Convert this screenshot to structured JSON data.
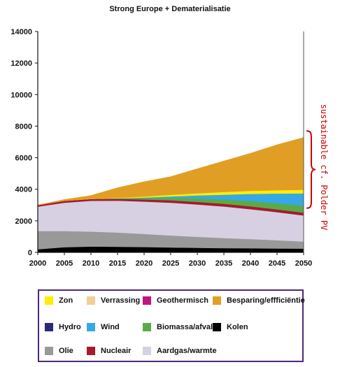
{
  "chart_data": {
    "type": "area",
    "title": "Strong Europe + Dematerialisatie",
    "x": [
      2000,
      2005,
      2010,
      2015,
      2020,
      2025,
      2030,
      2035,
      2040,
      2045,
      2050
    ],
    "xlim": [
      2000,
      2050
    ],
    "ylim": [
      0,
      14000
    ],
    "xticks": [
      "2000",
      "2005",
      "2010",
      "2015",
      "2020",
      "2025",
      "2030",
      "2035",
      "2040",
      "2045",
      "2050"
    ],
    "yticks": [
      "0",
      "2000",
      "4000",
      "6000",
      "8000",
      "10000",
      "12000",
      "14000"
    ],
    "grid": false,
    "series": [
      {
        "name": "Kolen",
        "color": "#000000",
        "values": [
          200,
          330,
          370,
          360,
          340,
          310,
          290,
          270,
          260,
          250,
          240
        ]
      },
      {
        "name": "Olie",
        "color": "#999999",
        "values": [
          1150,
          1020,
          950,
          900,
          830,
          760,
          700,
          640,
          580,
          520,
          450
        ]
      },
      {
        "name": "Aardgas/warmte",
        "color": "#d6d0e2",
        "values": [
          1550,
          1800,
          1950,
          2020,
          2050,
          2080,
          2050,
          2000,
          1900,
          1780,
          1650
        ]
      },
      {
        "name": "Nucleair",
        "color": "#a8192e",
        "values": [
          100,
          120,
          120,
          120,
          140,
          150,
          160,
          170,
          180,
          180,
          180
        ]
      },
      {
        "name": "Biomassa/afval",
        "color": "#5aab46",
        "values": [
          0,
          0,
          0,
          20,
          80,
          150,
          220,
          280,
          330,
          380,
          420
        ]
      },
      {
        "name": "Wind",
        "color": "#35a9e6",
        "values": [
          0,
          0,
          0,
          10,
          40,
          100,
          190,
          300,
          460,
          620,
          800
        ]
      },
      {
        "name": "Hydro",
        "color": "#2b2a7a",
        "values": [
          0,
          0,
          0,
          0,
          0,
          0,
          0,
          0,
          0,
          0,
          0
        ]
      },
      {
        "name": "Geothermisch",
        "color": "#c01480",
        "values": [
          0,
          0,
          0,
          0,
          0,
          0,
          0,
          0,
          0,
          0,
          0
        ]
      },
      {
        "name": "Verrassing",
        "color": "#f0cf95",
        "values": [
          0,
          0,
          0,
          0,
          0,
          0,
          0,
          0,
          0,
          0,
          0
        ]
      },
      {
        "name": "Zon",
        "color": "#ffee00",
        "values": [
          0,
          0,
          0,
          20,
          60,
          100,
          140,
          170,
          190,
          210,
          230
        ]
      },
      {
        "name": "Besparing/effficiëntie",
        "color": "#e09f24",
        "values": [
          0,
          80,
          210,
          650,
          940,
          1150,
          1550,
          1960,
          2380,
          2880,
          3310
        ]
      }
    ],
    "legend_order": [
      "Zon",
      "Verrassing",
      "Geothermisch",
      "Besparing/effficiëntie",
      "Hydro",
      "Wind",
      "Biomassa/afval",
      "Kolen",
      "Olie",
      "Nucleair",
      "Aardgas/warmte"
    ],
    "legend_position": "bottom",
    "annotation": "sustainable cf. Polder PV",
    "annotation_color": "#cc0000",
    "annotation_range": [
      2800,
      7700
    ]
  }
}
